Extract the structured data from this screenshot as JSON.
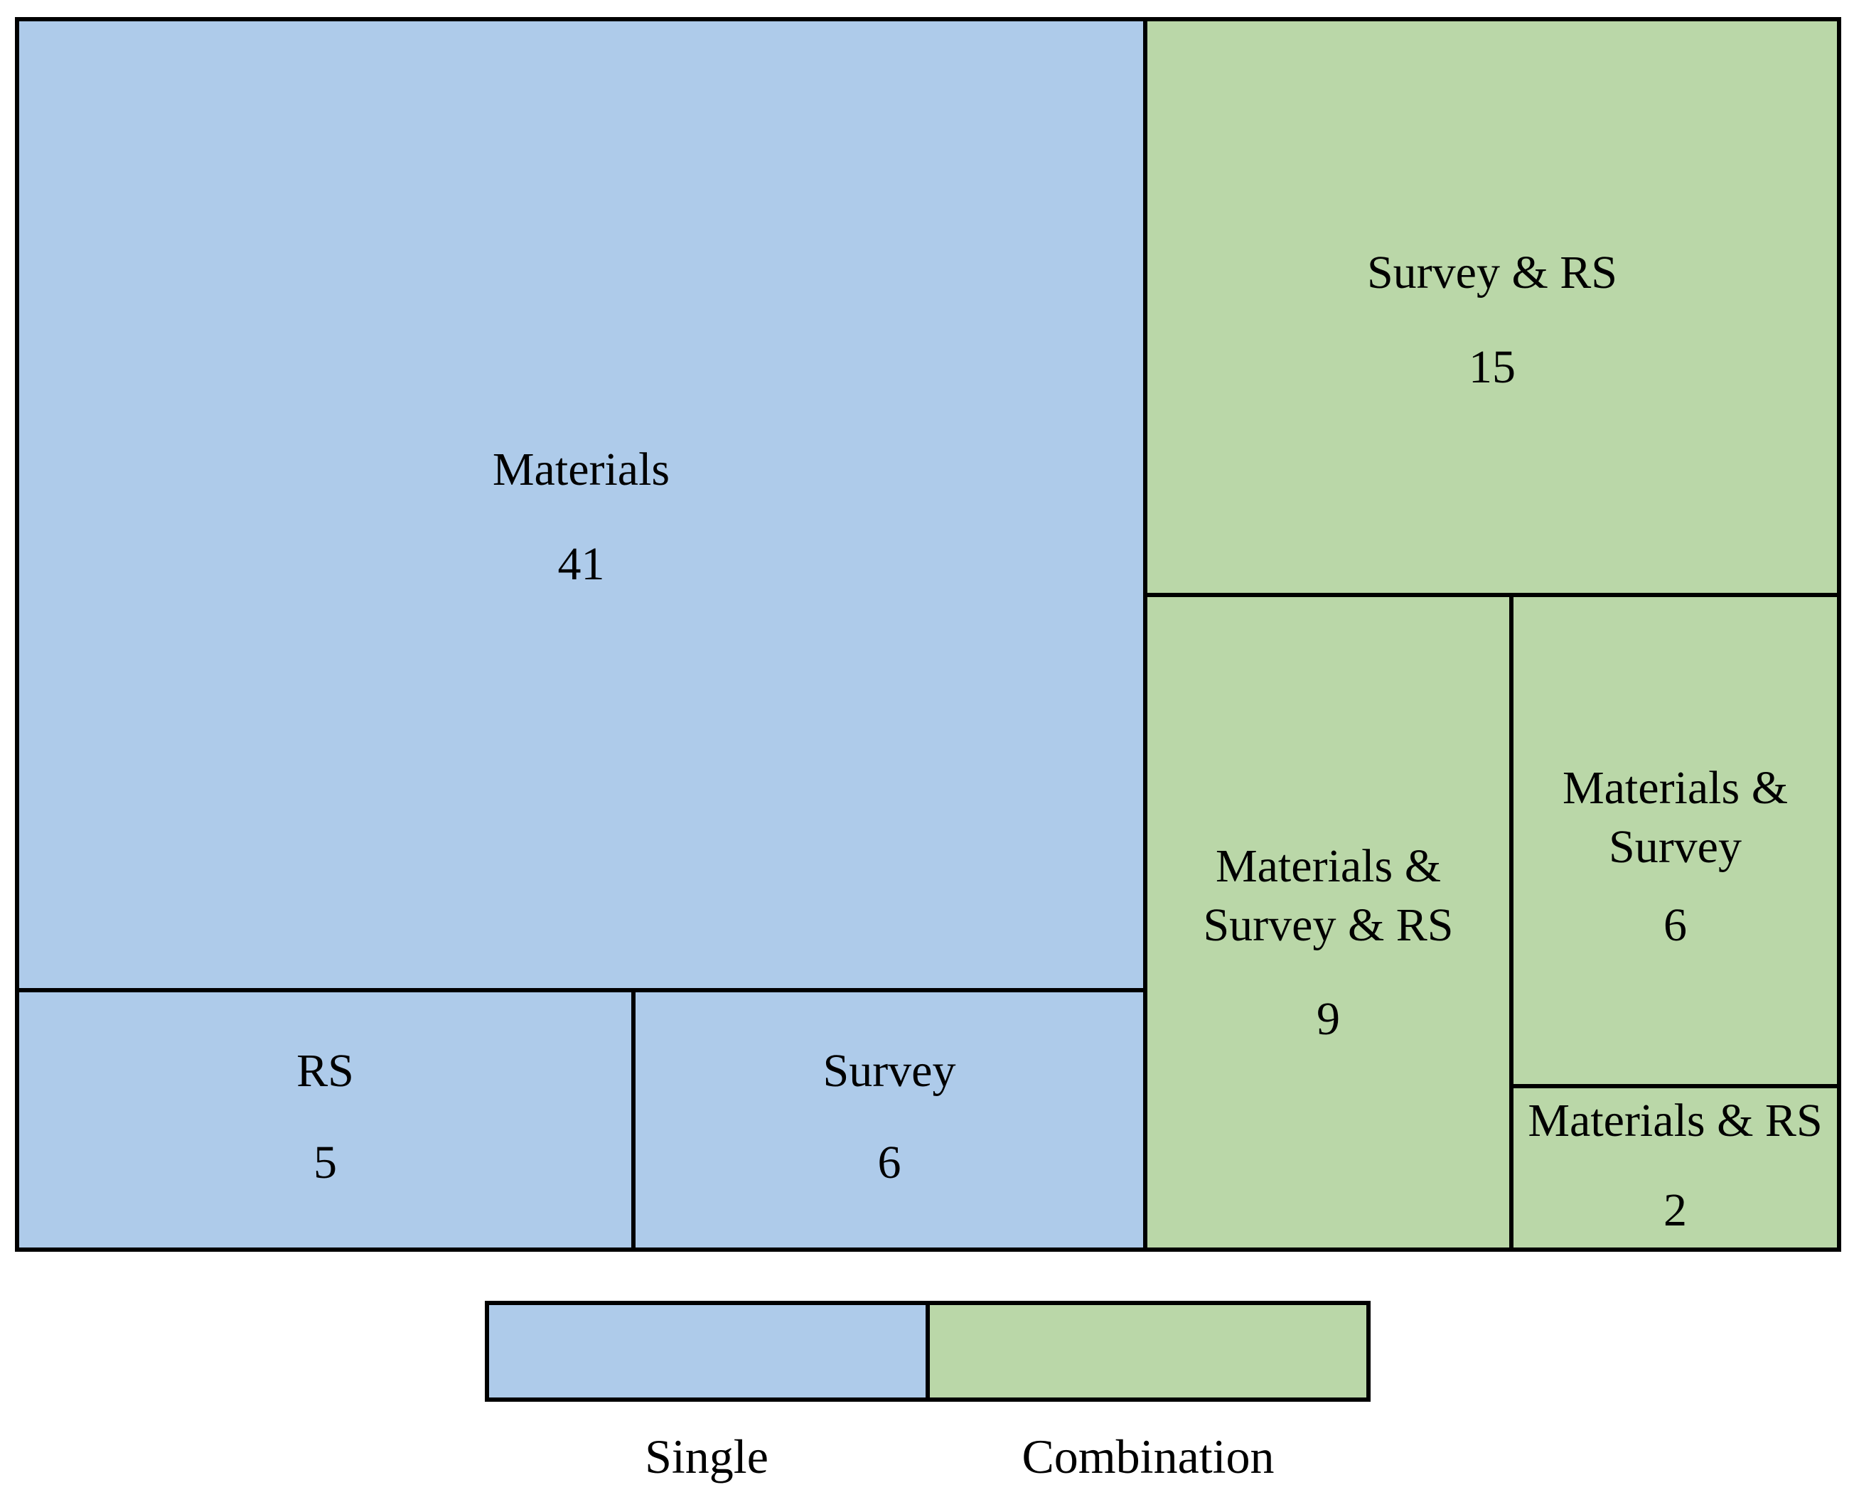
{
  "chart_data": {
    "type": "treemap",
    "title": "",
    "groups": [
      {
        "name": "Single",
        "color": "#aecbea",
        "items": [
          {
            "label": "Materials",
            "value": 41
          },
          {
            "label": "RS",
            "value": 5
          },
          {
            "label": "Survey",
            "value": 6
          }
        ]
      },
      {
        "name": "Combination",
        "color": "#bad7a8",
        "items": [
          {
            "label": "Survey & RS",
            "value": 15
          },
          {
            "label": "Materials & Survey & RS",
            "value": 9
          },
          {
            "label": "Materials & Survey",
            "value": 6
          },
          {
            "label": "Materials & RS",
            "value": 2
          }
        ]
      }
    ],
    "legend": [
      "Single",
      "Combination"
    ],
    "legend_position": "bottom"
  }
}
